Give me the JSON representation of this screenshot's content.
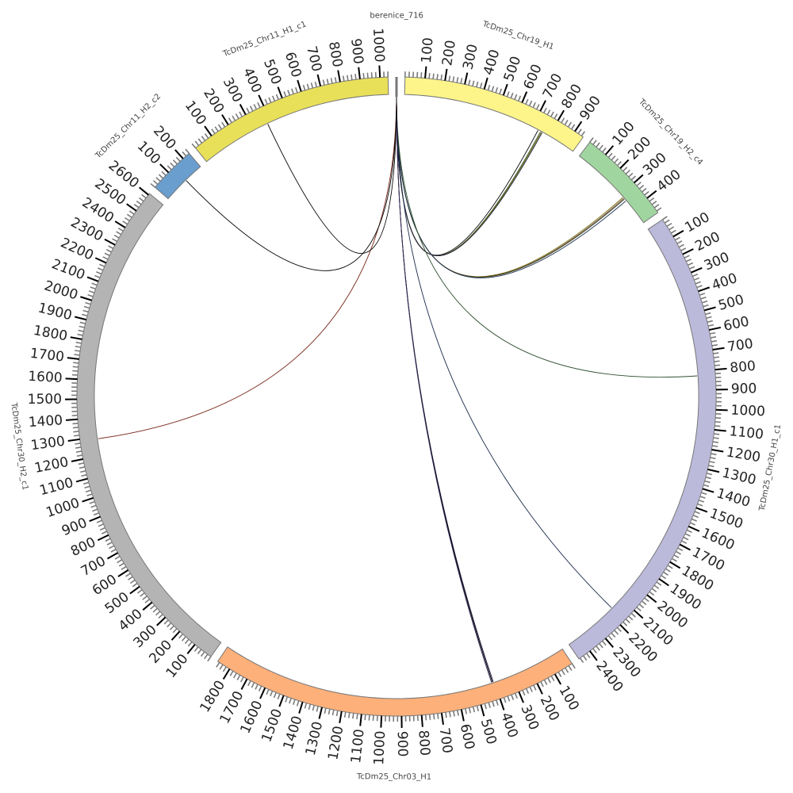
{
  "diagram": {
    "type": "circos",
    "chromosomes": [
      {
        "name": "berenice_716",
        "length": 1,
        "color": "#777777",
        "tick_labels": []
      },
      {
        "name": "TcDm25_Chr19_H1",
        "length": 950,
        "color": "#fdf58a",
        "tick_labels": [
          "100",
          "200",
          "300",
          "400",
          "500",
          "600",
          "700",
          "800",
          "900"
        ]
      },
      {
        "name": "TcDm25_Chr19_H2_c4",
        "length": 490,
        "color": "#a1d5a0",
        "tick_labels": [
          "100",
          "200",
          "300",
          "400"
        ]
      },
      {
        "name": "TcDm25_Chr30_H1_c1",
        "length": 2467,
        "color": "#bcbadb",
        "tick_labels": [
          "100",
          "200",
          "300",
          "400",
          "500",
          "600",
          "700",
          "800",
          "900",
          "1000",
          "1100",
          "1200",
          "1300",
          "1400",
          "1500",
          "1600",
          "1700",
          "1800",
          "1900",
          "2000",
          "2100",
          "2200",
          "2300",
          "2400"
        ]
      },
      {
        "name": "TcDm25_Chr03_H1",
        "length": 1870,
        "color": "#fdb07a",
        "tick_labels": [
          "100",
          "200",
          "300",
          "400",
          "500",
          "600",
          "700",
          "800",
          "900",
          "1000",
          "1100",
          "1200",
          "1300",
          "1400",
          "1500",
          "1600",
          "1700",
          "1800"
        ]
      },
      {
        "name": "TcDm25_Chr30_H2_c1",
        "length": 2608,
        "color": "#b4b4b4",
        "tick_labels": [
          "100",
          "200",
          "300",
          "400",
          "500",
          "600",
          "700",
          "800",
          "900",
          "1000",
          "1100",
          "1200",
          "1300",
          "1400",
          "1500",
          "1600",
          "1700",
          "1800",
          "1900",
          "2000",
          "2100",
          "2200",
          "2300",
          "2400",
          "2500",
          "2600"
        ]
      },
      {
        "name": "TcDm25_Chr11_H2_c2",
        "length": 240,
        "color": "#6a9ecf",
        "tick_labels": [
          "100",
          "200"
        ]
      },
      {
        "name": "TcDm25_Chr11_H1_c1",
        "length": 1040,
        "color": "#e9e05a",
        "tick_labels": [
          "100",
          "200",
          "300",
          "400",
          "500",
          "600",
          "700",
          "800",
          "900",
          "1000"
        ]
      }
    ],
    "links": [
      {
        "from": "berenice_716",
        "from_pos": 0,
        "to": "TcDm25_Chr19_H1",
        "to_pos": 735,
        "color": "#000000"
      },
      {
        "from": "berenice_716",
        "from_pos": 0,
        "to": "TcDm25_Chr19_H1",
        "to_pos": 750,
        "color": "#2f4f2f"
      },
      {
        "from": "berenice_716",
        "from_pos": 0,
        "to": "TcDm25_Chr19_H1",
        "to_pos": 755,
        "color": "#6b6b00"
      },
      {
        "from": "berenice_716",
        "from_pos": 0,
        "to": "TcDm25_Chr19_H1",
        "to_pos": 760,
        "color": "#1a1a40"
      },
      {
        "from": "berenice_716",
        "from_pos": 0,
        "to": "TcDm25_Chr19_H2_c4",
        "to_pos": 318,
        "color": "#6b6b00"
      },
      {
        "from": "berenice_716",
        "from_pos": 0,
        "to": "TcDm25_Chr19_H2_c4",
        "to_pos": 325,
        "color": "#7a3b2e"
      },
      {
        "from": "berenice_716",
        "from_pos": 0,
        "to": "TcDm25_Chr19_H2_c4",
        "to_pos": 330,
        "color": "#2f4f2f"
      },
      {
        "from": "berenice_716",
        "from_pos": 0,
        "to": "TcDm25_Chr19_H2_c4",
        "to_pos": 342,
        "color": "#1a2a4a"
      },
      {
        "from": "berenice_716",
        "from_pos": 0,
        "to": "TcDm25_Chr30_H1_c1",
        "to_pos": 825,
        "color": "#2f4f2f"
      },
      {
        "from": "berenice_716",
        "from_pos": 0,
        "to": "TcDm25_Chr30_H1_c1",
        "to_pos": 2170,
        "color": "#1a2a4a"
      },
      {
        "from": "berenice_716",
        "from_pos": 0,
        "to": "TcDm25_Chr03_H1",
        "to_pos": 405,
        "color": "#1a1a40"
      },
      {
        "from": "berenice_716",
        "from_pos": 0,
        "to": "TcDm25_Chr03_H1",
        "to_pos": 410,
        "color": "#000000"
      },
      {
        "from": "berenice_716",
        "from_pos": 0,
        "to": "TcDm25_Chr03_H1",
        "to_pos": 415,
        "color": "#3a2a5a"
      },
      {
        "from": "berenice_716",
        "from_pos": 0,
        "to": "TcDm25_Chr30_H2_c1",
        "to_pos": 1290,
        "color": "#7a2a1a"
      },
      {
        "from": "berenice_716",
        "from_pos": 0,
        "to": "TcDm25_Chr11_H2_c2",
        "to_pos": 135,
        "color": "#000000"
      },
      {
        "from": "berenice_716",
        "from_pos": 0,
        "to": "TcDm25_Chr11_H1_c1",
        "to_pos": 380,
        "color": "#000000"
      }
    ]
  }
}
